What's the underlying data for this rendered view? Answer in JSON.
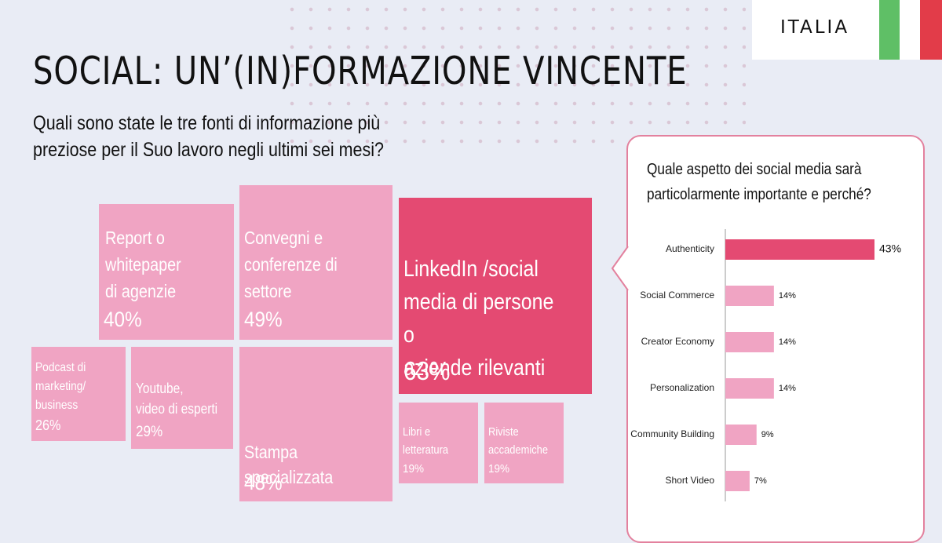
{
  "header": {
    "country": "ITALIA",
    "title": "SOCIAL: UN’(IN)FORMAZIONE VINCENTE",
    "subtitle": "Quali sono state le tre fonti di informazione più preziose per il Suo lavoro negli ultimi sei mesi?"
  },
  "colors": {
    "highlight": "#e44a72",
    "normal": "#f0a4c3",
    "flag_green": "#5fbf66",
    "flag_red": "#e23c49"
  },
  "tiles": {
    "report": {
      "label": "Report o\nwhitepaper\ndi agenzie",
      "value": "40%"
    },
    "convegni": {
      "label": "Convegni e\nconferenze di\nsettore",
      "value": "49%"
    },
    "linkedin": {
      "label": "LinkedIn /social\nmedia di persone o\naziende rilevanti",
      "value": "63%"
    },
    "podcast": {
      "label": "Podcast di\nmarketing/\nbusiness",
      "value": "26%"
    },
    "youtube": {
      "label": "Youtube,\nvideo di esperti",
      "value": "29%"
    },
    "stampa": {
      "label": "Stampa specializzata",
      "value": "48%"
    },
    "libri": {
      "label": "Libri e\nletteratura",
      "value": "19%"
    },
    "riviste": {
      "label": "Riviste\naccademiche",
      "value": "19%"
    }
  },
  "side_panel": {
    "question": "Quale aspetto dei social media sarà particolarmente importante e perché?"
  },
  "chart_data": [
    {
      "type": "treemap",
      "categories": [
        "Report o whitepaper di agenzie",
        "Convegni e conferenze di settore",
        "LinkedIn /social media di persone o aziende rilevanti",
        "Podcast di marketing/ business",
        "Youtube, video di esperti",
        "Stampa specializzata",
        "Libri e letteratura",
        "Riviste accademiche"
      ],
      "values": [
        40,
        49,
        63,
        26,
        29,
        48,
        19,
        19
      ],
      "unit": "%",
      "title": "Quali sono state le tre fonti di informazione più preziose per il Suo lavoro negli ultimi sei mesi?"
    },
    {
      "type": "bar",
      "orientation": "horizontal",
      "categories": [
        "Authenticity",
        "Social Commerce",
        "Creator Economy",
        "Personalization",
        "Community Building",
        "Short Video"
      ],
      "values": [
        43,
        14,
        14,
        14,
        9,
        7
      ],
      "labels": [
        "43%",
        "14%",
        "14%",
        "14%",
        "9%",
        "7%"
      ],
      "highlight_index": 0,
      "title": "Quale aspetto dei social media sarà particolarmente importante e perché?"
    }
  ]
}
